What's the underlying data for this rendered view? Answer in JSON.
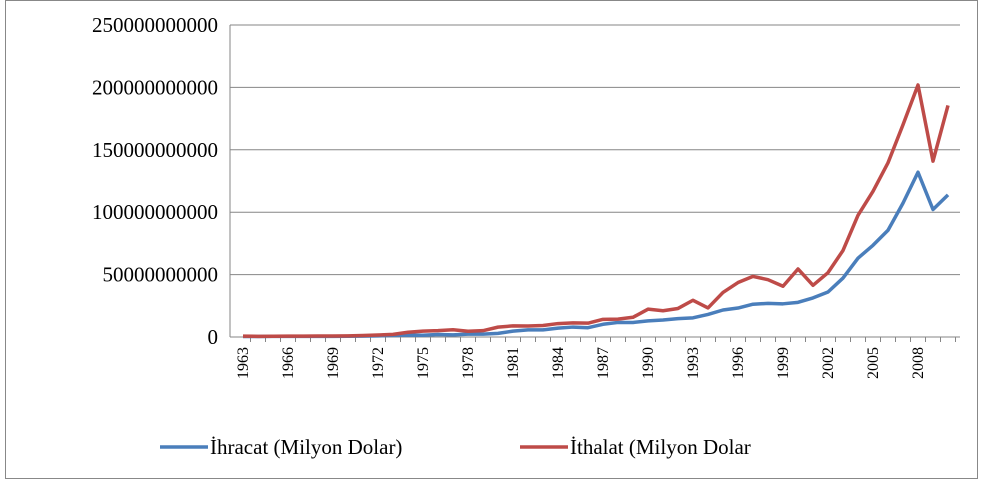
{
  "chart_data": {
    "type": "line",
    "categories": [
      "1963",
      null,
      null,
      "1966",
      null,
      null,
      "1969",
      null,
      null,
      "1972",
      null,
      null,
      "1975",
      null,
      null,
      "1978",
      null,
      null,
      "1981",
      null,
      null,
      "1984",
      null,
      null,
      "1987",
      null,
      null,
      "1990",
      null,
      null,
      "1993",
      null,
      null,
      "1996",
      null,
      null,
      "1999",
      null,
      null,
      "2002",
      null,
      null,
      "2005",
      null,
      null,
      "2008",
      null,
      null
    ],
    "series": [
      {
        "name": "İhracat (Milyon Dolar)",
        "color": "#4a7ebb",
        "values": [
          370000000,
          410000000,
          460000000,
          490000000,
          520000000,
          500000000,
          540000000,
          590000000,
          680000000,
          890000000,
          1320000000,
          1530000000,
          1400000000,
          1960000000,
          1750000000,
          2290000000,
          2260000000,
          2910000000,
          4700000000,
          5750000000,
          5730000000,
          7130000000,
          7960000000,
          7460000000,
          10190000000,
          11660000000,
          11620000000,
          12960000000,
          13590000000,
          14710000000,
          15350000000,
          18110000000,
          21640000000,
          23220000000,
          26260000000,
          26970000000,
          26590000000,
          27770000000,
          31330000000,
          36060000000,
          47250000000,
          63170000000,
          73480000000,
          85530000000,
          107270000000,
          132030000000,
          102140000000,
          113880000000
        ]
      },
      {
        "name": "İthalat (Milyon Dolar",
        "color": "#be4b48",
        "values": [
          690000000,
          540000000,
          570000000,
          720000000,
          680000000,
          760000000,
          800000000,
          950000000,
          1170000000,
          1560000000,
          2090000000,
          3780000000,
          4740000000,
          5130000000,
          5800000000,
          4600000000,
          5070000000,
          7910000000,
          8930000000,
          8840000000,
          9240000000,
          10760000000,
          11340000000,
          11100000000,
          14160000000,
          14340000000,
          15790000000,
          22300000000,
          21050000000,
          22870000000,
          29430000000,
          23270000000,
          35710000000,
          43630000000,
          48560000000,
          45920000000,
          40670000000,
          54500000000,
          41400000000,
          51550000000,
          69340000000,
          97540000000,
          116770000000,
          139580000000,
          170060000000,
          201960000000,
          140930000000,
          185540000000
        ]
      }
    ],
    "ylim": [
      0,
      250000000000
    ],
    "yticks": [
      0,
      50000000000,
      100000000000,
      150000000000,
      200000000000,
      250000000000
    ],
    "grid": true,
    "legend": "bottom"
  }
}
